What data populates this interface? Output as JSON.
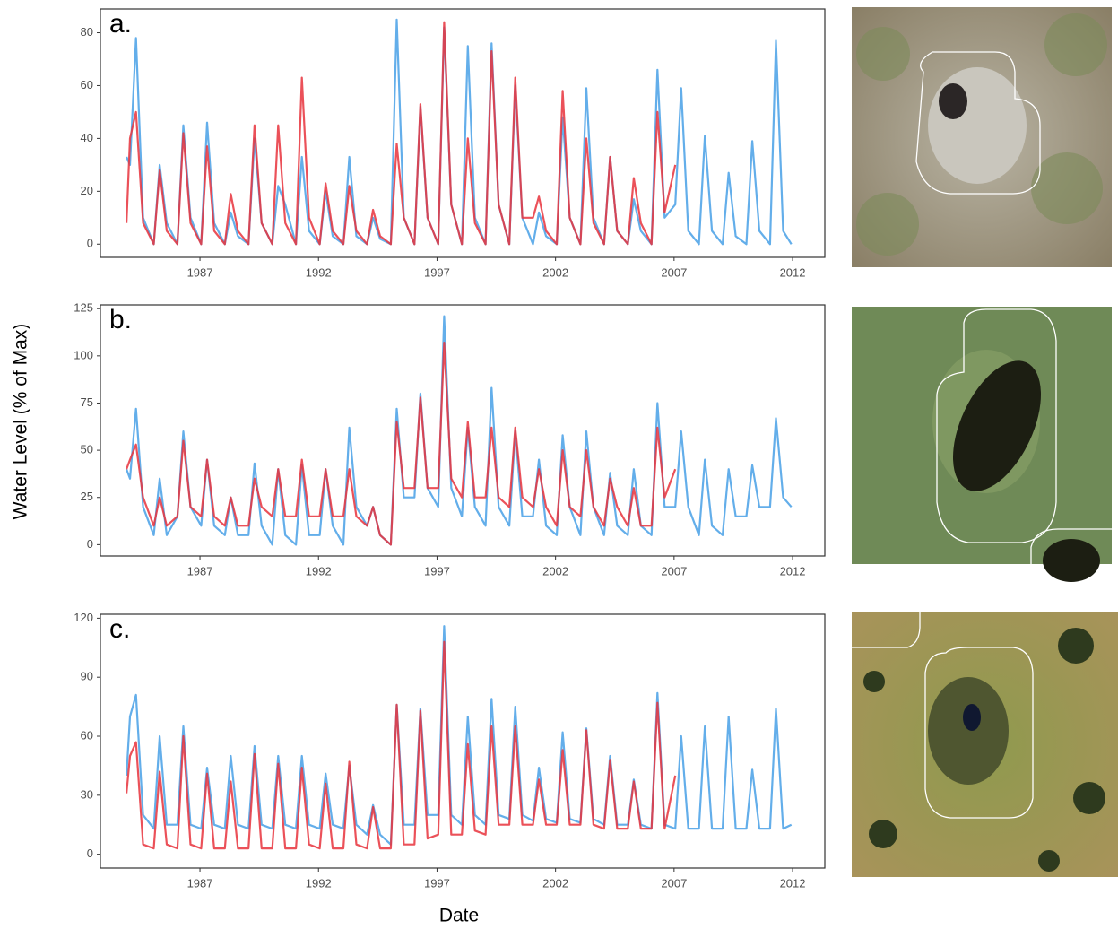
{
  "chart_data": [
    {
      "type": "line",
      "annotation": "a.",
      "x": [
        1983.9,
        1984.05,
        1984.3,
        1984.6,
        1985.05,
        1985.3,
        1985.6,
        1986.05,
        1986.3,
        1986.6,
        1987.05,
        1987.3,
        1987.6,
        1988.05,
        1988.3,
        1988.6,
        1989.05,
        1989.3,
        1989.6,
        1990.05,
        1990.3,
        1990.6,
        1991.05,
        1991.3,
        1991.6,
        1992.05,
        1992.3,
        1992.6,
        1993.05,
        1993.3,
        1993.6,
        1994.05,
        1994.3,
        1994.6,
        1995.05,
        1995.3,
        1995.6,
        1996.05,
        1996.3,
        1996.6,
        1997.05,
        1997.3,
        1997.6,
        1998.05,
        1998.3,
        1998.6,
        1999.05,
        1999.3,
        1999.6,
        2000.05,
        2000.3,
        2000.6,
        2001.05,
        2001.3,
        2001.6,
        2002.05,
        2002.3,
        2002.6,
        2003.05,
        2003.3,
        2003.6,
        2004.05,
        2004.3,
        2004.6,
        2005.05,
        2005.3,
        2005.6,
        2006.05,
        2006.3,
        2006.6,
        2007.05,
        2007.3,
        2007.6,
        2008.05,
        2008.3,
        2008.6,
        2009.05,
        2009.3,
        2009.6,
        2010.05,
        2010.3,
        2010.6,
        2011.05,
        2011.3,
        2011.6,
        2011.95
      ],
      "series": [
        {
          "color": "#63aeea",
          "values": [
            33,
            30,
            78,
            10,
            0,
            30,
            8,
            0,
            45,
            10,
            0,
            46,
            8,
            0,
            12,
            3,
            0,
            40,
            8,
            0,
            22,
            15,
            0,
            33,
            5,
            0,
            20,
            3,
            0,
            33,
            3,
            0,
            10,
            2,
            0,
            85,
            10,
            0,
            52,
            10,
            0,
            82,
            15,
            0,
            75,
            10,
            0,
            76,
            15,
            0,
            60,
            10,
            0,
            12,
            3,
            0,
            48,
            10,
            0,
            59,
            10,
            0,
            33,
            5,
            0,
            17,
            5,
            0,
            66,
            10,
            15,
            59,
            5,
            0,
            41,
            5,
            0,
            27,
            3,
            0,
            39,
            5,
            0,
            77,
            5,
            0
          ]
        },
        {
          "color": "#e8323c",
          "values": [
            8,
            40,
            50,
            8,
            0,
            28,
            5,
            0,
            42,
            8,
            0,
            37,
            5,
            0,
            19,
            5,
            0,
            45,
            8,
            0,
            45,
            8,
            0,
            63,
            10,
            0,
            23,
            5,
            0,
            22,
            5,
            0,
            13,
            3,
            0,
            38,
            10,
            0,
            53,
            10,
            0,
            84,
            15,
            0,
            40,
            8,
            0,
            73,
            15,
            0,
            63,
            10,
            10,
            18,
            5,
            0,
            58,
            10,
            0,
            40,
            8,
            0,
            33,
            5,
            0,
            25,
            8,
            0,
            50,
            12,
            30,
            null,
            null,
            null,
            null,
            null,
            null,
            null,
            null,
            null,
            null,
            null,
            null,
            null,
            null,
            null
          ]
        }
      ],
      "xlim": [
        1982.8,
        2013.36
      ],
      "xticks": [
        1987,
        1992,
        1997,
        2002,
        2007,
        2012
      ],
      "ylim": [
        -5,
        89
      ],
      "yticks": [
        0,
        20,
        40,
        60,
        80
      ]
    },
    {
      "type": "line",
      "annotation": "b.",
      "ylabel": "Water Level (% of Max)",
      "x": [
        1983.9,
        1984.05,
        1984.3,
        1984.6,
        1985.05,
        1985.3,
        1985.6,
        1986.05,
        1986.3,
        1986.6,
        1987.05,
        1987.3,
        1987.6,
        1988.05,
        1988.3,
        1988.6,
        1989.05,
        1989.3,
        1989.6,
        1990.05,
        1990.3,
        1990.6,
        1991.05,
        1991.3,
        1991.6,
        1992.05,
        1992.3,
        1992.6,
        1993.05,
        1993.3,
        1993.6,
        1994.05,
        1994.3,
        1994.6,
        1995.05,
        1995.3,
        1995.6,
        1996.05,
        1996.3,
        1996.6,
        1997.05,
        1997.3,
        1997.6,
        1998.05,
        1998.3,
        1998.6,
        1999.05,
        1999.3,
        1999.6,
        2000.05,
        2000.3,
        2000.6,
        2001.05,
        2001.3,
        2001.6,
        2002.05,
        2002.3,
        2002.6,
        2003.05,
        2003.3,
        2003.6,
        2004.05,
        2004.3,
        2004.6,
        2005.05,
        2005.3,
        2005.6,
        2006.05,
        2006.3,
        2006.6,
        2007.05,
        2007.3,
        2007.6,
        2008.05,
        2008.3,
        2008.6,
        2009.05,
        2009.3,
        2009.6,
        2010.05,
        2010.3,
        2010.6,
        2011.05,
        2011.3,
        2011.6,
        2011.95
      ],
      "series": [
        {
          "color": "#63aeea",
          "values": [
            40,
            35,
            72,
            20,
            5,
            35,
            5,
            15,
            60,
            20,
            10,
            45,
            10,
            5,
            25,
            5,
            5,
            43,
            10,
            0,
            40,
            5,
            0,
            42,
            5,
            5,
            40,
            10,
            0,
            62,
            20,
            10,
            20,
            5,
            0,
            72,
            25,
            25,
            80,
            30,
            20,
            121,
            30,
            15,
            62,
            20,
            10,
            83,
            20,
            10,
            60,
            15,
            15,
            45,
            10,
            5,
            58,
            20,
            5,
            60,
            20,
            5,
            38,
            10,
            5,
            40,
            10,
            5,
            75,
            20,
            20,
            60,
            20,
            5,
            45,
            10,
            5,
            40,
            15,
            15,
            42,
            20,
            20,
            67,
            25,
            20
          ]
        },
        {
          "color": "#e8323c",
          "values": [
            40,
            45,
            53,
            25,
            10,
            25,
            10,
            15,
            55,
            20,
            15,
            45,
            15,
            10,
            25,
            10,
            10,
            35,
            20,
            15,
            40,
            15,
            15,
            45,
            15,
            15,
            40,
            15,
            15,
            40,
            15,
            10,
            20,
            5,
            0,
            65,
            30,
            30,
            78,
            30,
            30,
            107,
            35,
            25,
            65,
            25,
            25,
            62,
            25,
            20,
            62,
            25,
            20,
            40,
            20,
            10,
            50,
            20,
            15,
            50,
            20,
            10,
            35,
            20,
            10,
            30,
            10,
            10,
            62,
            25,
            40,
            null,
            null,
            null,
            null,
            null,
            null,
            null,
            null,
            null,
            null,
            null,
            null,
            null,
            null,
            null
          ]
        }
      ],
      "xlim": [
        1982.8,
        2013.36
      ],
      "xticks": [
        1987,
        1992,
        1997,
        2002,
        2007,
        2012
      ],
      "ylim": [
        -6,
        127
      ],
      "yticks": [
        0,
        25,
        50,
        75,
        100,
        125
      ]
    },
    {
      "type": "line",
      "annotation": "c.",
      "xlabel": "Date",
      "x": [
        1983.9,
        1984.05,
        1984.3,
        1984.6,
        1985.05,
        1985.3,
        1985.6,
        1986.05,
        1986.3,
        1986.6,
        1987.05,
        1987.3,
        1987.6,
        1988.05,
        1988.3,
        1988.6,
        1989.05,
        1989.3,
        1989.6,
        1990.05,
        1990.3,
        1990.6,
        1991.05,
        1991.3,
        1991.6,
        1992.05,
        1992.3,
        1992.6,
        1993.05,
        1993.3,
        1993.6,
        1994.05,
        1994.3,
        1994.6,
        1995.05,
        1995.3,
        1995.6,
        1996.05,
        1996.3,
        1996.6,
        1997.05,
        1997.3,
        1997.6,
        1998.05,
        1998.3,
        1998.6,
        1999.05,
        1999.3,
        1999.6,
        2000.05,
        2000.3,
        2000.6,
        2001.05,
        2001.3,
        2001.6,
        2002.05,
        2002.3,
        2002.6,
        2003.05,
        2003.3,
        2003.6,
        2004.05,
        2004.3,
        2004.6,
        2005.05,
        2005.3,
        2005.6,
        2006.05,
        2006.3,
        2006.6,
        2007.05,
        2007.3,
        2007.6,
        2008.05,
        2008.3,
        2008.6,
        2009.05,
        2009.3,
        2009.6,
        2010.05,
        2010.3,
        2010.6,
        2011.05,
        2011.3,
        2011.6,
        2011.95
      ],
      "series": [
        {
          "color": "#63aeea",
          "values": [
            40,
            70,
            81,
            20,
            13,
            60,
            15,
            15,
            65,
            15,
            13,
            44,
            15,
            13,
            50,
            15,
            13,
            55,
            15,
            13,
            50,
            15,
            13,
            50,
            15,
            13,
            41,
            15,
            13,
            45,
            15,
            10,
            25,
            10,
            5,
            76,
            15,
            15,
            74,
            20,
            20,
            116,
            20,
            15,
            70,
            20,
            15,
            79,
            20,
            18,
            75,
            20,
            17,
            44,
            18,
            16,
            62,
            18,
            16,
            64,
            18,
            15,
            50,
            15,
            15,
            38,
            15,
            13,
            82,
            15,
            13,
            60,
            13,
            13,
            65,
            13,
            13,
            70,
            13,
            13,
            43,
            13,
            13,
            74,
            13,
            15
          ]
        },
        {
          "color": "#e8323c",
          "values": [
            31,
            50,
            57,
            5,
            3,
            42,
            5,
            3,
            60,
            5,
            3,
            41,
            3,
            3,
            37,
            3,
            3,
            51,
            3,
            3,
            46,
            3,
            3,
            44,
            5,
            3,
            36,
            3,
            3,
            47,
            5,
            3,
            24,
            3,
            3,
            76,
            5,
            5,
            73,
            8,
            10,
            108,
            10,
            10,
            56,
            12,
            10,
            65,
            15,
            15,
            65,
            15,
            15,
            38,
            15,
            15,
            53,
            15,
            15,
            63,
            15,
            13,
            48,
            13,
            13,
            37,
            13,
            13,
            77,
            13,
            40,
            null,
            null,
            null,
            null,
            null,
            null,
            null,
            null,
            null,
            null,
            null,
            null,
            null,
            null,
            null
          ]
        }
      ],
      "xlim": [
        1982.8,
        2013.36
      ],
      "xticks": [
        1987,
        1992,
        1997,
        2002,
        2007,
        2012
      ],
      "ylim": [
        -7,
        122
      ],
      "yticks": [
        0,
        30,
        60,
        90,
        120
      ]
    }
  ]
}
